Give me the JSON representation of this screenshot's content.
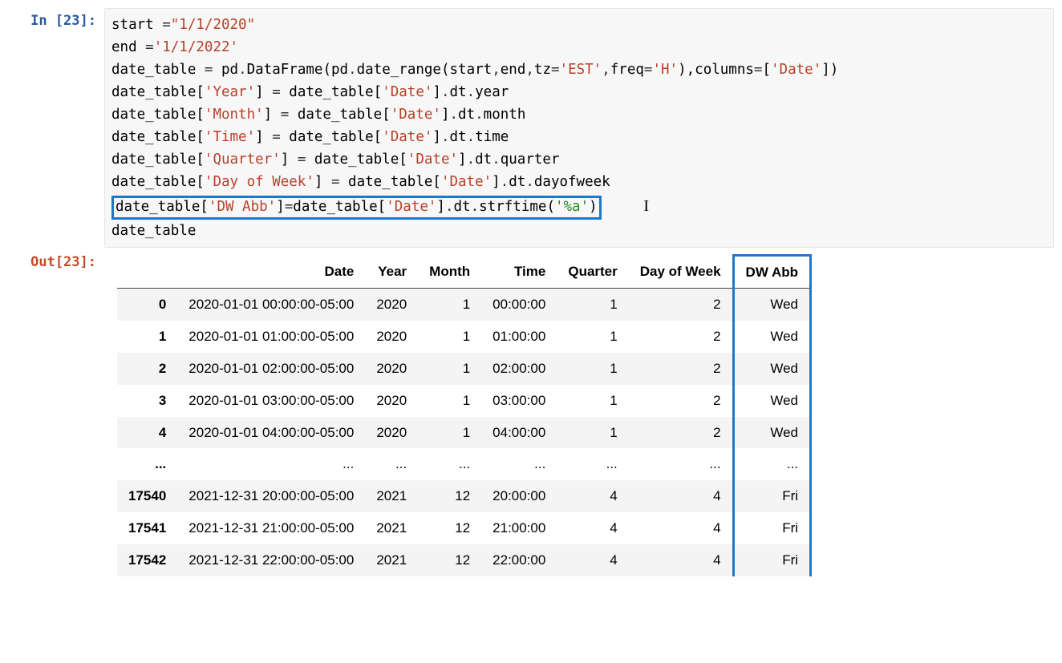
{
  "execution_count": 23,
  "prompt_in_label": "In [23]:",
  "prompt_out_label": "Out[23]:",
  "code": {
    "lines": [
      {
        "tokens": [
          [
            "name",
            "start "
          ],
          [
            "op",
            "="
          ],
          [
            "str",
            "\"1/1/2020\""
          ]
        ]
      },
      {
        "tokens": [
          [
            "name",
            "end "
          ],
          [
            "op",
            "="
          ],
          [
            "str",
            "'1/1/2022'"
          ]
        ]
      },
      {
        "tokens": [
          [
            "name",
            "date_table "
          ],
          [
            "op",
            "="
          ],
          [
            "name",
            " pd"
          ],
          [
            "op",
            "."
          ],
          [
            "name",
            "DataFrame"
          ],
          [
            "paren",
            "("
          ],
          [
            "name",
            "pd"
          ],
          [
            "op",
            "."
          ],
          [
            "name",
            "date_range"
          ],
          [
            "paren",
            "("
          ],
          [
            "name",
            "start"
          ],
          [
            "op",
            ","
          ],
          [
            "name",
            "end"
          ],
          [
            "op",
            ","
          ],
          [
            "name",
            "tz"
          ],
          [
            "op",
            "="
          ],
          [
            "str",
            "'EST'"
          ],
          [
            "op",
            ","
          ],
          [
            "name",
            "freq"
          ],
          [
            "op",
            "="
          ],
          [
            "str",
            "'H'"
          ],
          [
            "paren",
            "),"
          ],
          [
            "name",
            "columns"
          ],
          [
            "op",
            "="
          ],
          [
            "paren",
            "["
          ],
          [
            "str",
            "'Date'"
          ],
          [
            "paren",
            "])"
          ]
        ]
      },
      {
        "tokens": [
          [
            "name",
            "date_table"
          ],
          [
            "paren",
            "["
          ],
          [
            "str",
            "'Year'"
          ],
          [
            "paren",
            "]"
          ],
          [
            "op",
            " = "
          ],
          [
            "name",
            "date_table"
          ],
          [
            "paren",
            "["
          ],
          [
            "str",
            "'Date'"
          ],
          [
            "paren",
            "]"
          ],
          [
            "op",
            "."
          ],
          [
            "name",
            "dt"
          ],
          [
            "op",
            "."
          ],
          [
            "name",
            "year"
          ]
        ]
      },
      {
        "tokens": [
          [
            "name",
            "date_table"
          ],
          [
            "paren",
            "["
          ],
          [
            "str",
            "'Month'"
          ],
          [
            "paren",
            "]"
          ],
          [
            "op",
            " = "
          ],
          [
            "name",
            "date_table"
          ],
          [
            "paren",
            "["
          ],
          [
            "str",
            "'Date'"
          ],
          [
            "paren",
            "]"
          ],
          [
            "op",
            "."
          ],
          [
            "name",
            "dt"
          ],
          [
            "op",
            "."
          ],
          [
            "name",
            "month"
          ]
        ]
      },
      {
        "tokens": [
          [
            "name",
            "date_table"
          ],
          [
            "paren",
            "["
          ],
          [
            "str",
            "'Time'"
          ],
          [
            "paren",
            "]"
          ],
          [
            "op",
            " = "
          ],
          [
            "name",
            "date_table"
          ],
          [
            "paren",
            "["
          ],
          [
            "str",
            "'Date'"
          ],
          [
            "paren",
            "]"
          ],
          [
            "op",
            "."
          ],
          [
            "name",
            "dt"
          ],
          [
            "op",
            "."
          ],
          [
            "name",
            "time"
          ]
        ]
      },
      {
        "tokens": [
          [
            "name",
            "date_table"
          ],
          [
            "paren",
            "["
          ],
          [
            "str",
            "'Quarter'"
          ],
          [
            "paren",
            "]"
          ],
          [
            "op",
            " = "
          ],
          [
            "name",
            "date_table"
          ],
          [
            "paren",
            "["
          ],
          [
            "str",
            "'Date'"
          ],
          [
            "paren",
            "]"
          ],
          [
            "op",
            "."
          ],
          [
            "name",
            "dt"
          ],
          [
            "op",
            "."
          ],
          [
            "name",
            "quarter"
          ]
        ]
      },
      {
        "tokens": [
          [
            "name",
            "date_table"
          ],
          [
            "paren",
            "["
          ],
          [
            "str",
            "'Day of Week'"
          ],
          [
            "paren",
            "]"
          ],
          [
            "op",
            " = "
          ],
          [
            "name",
            "date_table"
          ],
          [
            "paren",
            "["
          ],
          [
            "str",
            "'Date'"
          ],
          [
            "paren",
            "]"
          ],
          [
            "op",
            "."
          ],
          [
            "name",
            "dt"
          ],
          [
            "op",
            "."
          ],
          [
            "name",
            "dayofweek"
          ]
        ]
      },
      {
        "highlighted": true,
        "tokens": [
          [
            "name",
            "date_table"
          ],
          [
            "paren",
            "["
          ],
          [
            "str",
            "'DW Abb'"
          ],
          [
            "paren",
            "]"
          ],
          [
            "op",
            "="
          ],
          [
            "name",
            "date_table"
          ],
          [
            "paren",
            "["
          ],
          [
            "str",
            "'Date'"
          ],
          [
            "paren",
            "]"
          ],
          [
            "op",
            "."
          ],
          [
            "name",
            "dt"
          ],
          [
            "op",
            "."
          ],
          [
            "name",
            "strftime"
          ],
          [
            "paren",
            "("
          ],
          [
            "strg",
            "'%a'"
          ],
          [
            "paren",
            ")"
          ]
        ],
        "trailing_cursor": true
      },
      {
        "tokens": [
          [
            "name",
            "date_table"
          ]
        ]
      }
    ]
  },
  "output_table": {
    "columns": [
      "Date",
      "Year",
      "Month",
      "Time",
      "Quarter",
      "Day of Week",
      "DW Abb"
    ],
    "highlighted_column_index": 6,
    "index": [
      "0",
      "1",
      "2",
      "3",
      "4",
      "...",
      "17540",
      "17541",
      "17542"
    ],
    "rows": [
      [
        "2020-01-01 00:00:00-05:00",
        "2020",
        "1",
        "00:00:00",
        "1",
        "2",
        "Wed"
      ],
      [
        "2020-01-01 01:00:00-05:00",
        "2020",
        "1",
        "01:00:00",
        "1",
        "2",
        "Wed"
      ],
      [
        "2020-01-01 02:00:00-05:00",
        "2020",
        "1",
        "02:00:00",
        "1",
        "2",
        "Wed"
      ],
      [
        "2020-01-01 03:00:00-05:00",
        "2020",
        "1",
        "03:00:00",
        "1",
        "2",
        "Wed"
      ],
      [
        "2020-01-01 04:00:00-05:00",
        "2020",
        "1",
        "04:00:00",
        "1",
        "2",
        "Wed"
      ],
      [
        "...",
        "...",
        "...",
        "...",
        "...",
        "...",
        "..."
      ],
      [
        "2021-12-31 20:00:00-05:00",
        "2021",
        "12",
        "20:00:00",
        "4",
        "4",
        "Fri"
      ],
      [
        "2021-12-31 21:00:00-05:00",
        "2021",
        "12",
        "21:00:00",
        "4",
        "4",
        "Fri"
      ],
      [
        "2021-12-31 22:00:00-05:00",
        "2021",
        "12",
        "22:00:00",
        "4",
        "4",
        "Fri"
      ]
    ]
  },
  "style": {
    "highlight_color": "#1f77c9",
    "input_bg": "#f7f7f7",
    "in_prompt_color": "#2b58a0",
    "out_prompt_color": "#c94a2a"
  }
}
